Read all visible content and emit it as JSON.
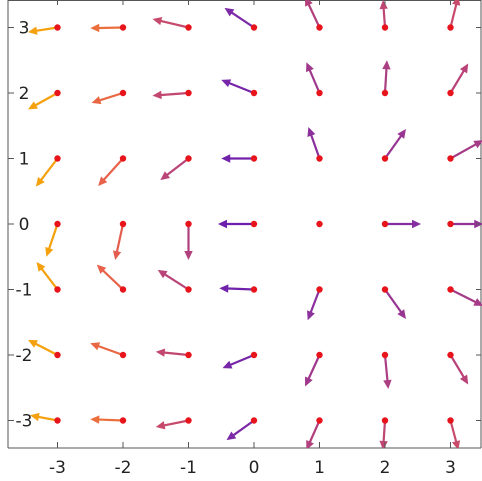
{
  "chart_data": {
    "type": "vector-field",
    "title": "",
    "xlabel": "",
    "ylabel": "",
    "xlim": [
      -3.45,
      3.45
    ],
    "ylim": [
      -3.45,
      3.45
    ],
    "grid": false,
    "legend": "none",
    "x_ticks": [
      "-3",
      "-2",
      "-1",
      "0",
      "1",
      "2",
      "3"
    ],
    "y_ticks": [
      "3",
      "2",
      "1",
      "0",
      "-1",
      "-2",
      "-3"
    ],
    "x_tick_values": [
      -3,
      -2,
      -1,
      0,
      1,
      2,
      3
    ],
    "y_tick_values": [
      3,
      2,
      1,
      0,
      -1,
      -2,
      -3
    ],
    "sample_point_color": "#e8141b",
    "arrow_color_scale": [
      "#4b10b6",
      "#7e2aa6",
      "#c4486f",
      "#e8614a",
      "#f5a00d"
    ],
    "vectors": [
      {
        "x": -3,
        "y": 3,
        "dx": -0.45,
        "dy": -0.07
      },
      {
        "x": -2,
        "y": 3,
        "dx": -0.5,
        "dy": -0.01
      },
      {
        "x": -1,
        "y": 3,
        "dx": -0.55,
        "dy": 0.13
      },
      {
        "x": 0,
        "y": 3,
        "dx": -0.45,
        "dy": 0.3
      },
      {
        "x": 1,
        "y": 3,
        "dx": -0.22,
        "dy": 0.47
      },
      {
        "x": 2,
        "y": 3,
        "dx": -0.03,
        "dy": 0.42
      },
      {
        "x": 3,
        "y": 3,
        "dx": 0.12,
        "dy": 0.48
      },
      {
        "x": -3,
        "y": 2,
        "dx": -0.45,
        "dy": -0.25
      },
      {
        "x": -2,
        "y": 2,
        "dx": -0.48,
        "dy": -0.15
      },
      {
        "x": -1,
        "y": 2,
        "dx": -0.55,
        "dy": -0.04
      },
      {
        "x": 0,
        "y": 2,
        "dx": -0.5,
        "dy": 0.2
      },
      {
        "x": 1,
        "y": 2,
        "dx": -0.2,
        "dy": 0.47
      },
      {
        "x": 2,
        "y": 2,
        "dx": 0.03,
        "dy": 0.5
      },
      {
        "x": 3,
        "y": 2,
        "dx": 0.27,
        "dy": 0.45
      },
      {
        "x": -3,
        "y": 1,
        "dx": -0.33,
        "dy": -0.43
      },
      {
        "x": -2,
        "y": 1,
        "dx": -0.38,
        "dy": -0.42
      },
      {
        "x": -1,
        "y": 1,
        "dx": -0.43,
        "dy": -0.33
      },
      {
        "x": 0,
        "y": 1,
        "dx": -0.5,
        "dy": 0.0
      },
      {
        "x": 1,
        "y": 1,
        "dx": -0.17,
        "dy": 0.48
      },
      {
        "x": 2,
        "y": 1,
        "dx": 0.32,
        "dy": 0.45
      },
      {
        "x": 3,
        "y": 1,
        "dx": 0.5,
        "dy": 0.28
      },
      {
        "x": -3,
        "y": 0,
        "dx": -0.17,
        "dy": -0.5
      },
      {
        "x": -2,
        "y": 0,
        "dx": -0.12,
        "dy": -0.55
      },
      {
        "x": -1,
        "y": 0,
        "dx": 0.0,
        "dy": -0.55
      },
      {
        "x": 0,
        "y": 0,
        "dx": -0.55,
        "dy": 0.0
      },
      {
        "x": 1,
        "y": 0,
        "dx": 0.0,
        "dy": 0.0
      },
      {
        "x": 2,
        "y": 0,
        "dx": 0.55,
        "dy": 0.0
      },
      {
        "x": 3,
        "y": 0,
        "dx": 0.5,
        "dy": 0.0
      },
      {
        "x": -3,
        "y": -1,
        "dx": -0.32,
        "dy": 0.42
      },
      {
        "x": -2,
        "y": -1,
        "dx": -0.4,
        "dy": 0.38
      },
      {
        "x": -1,
        "y": -1,
        "dx": -0.47,
        "dy": 0.3
      },
      {
        "x": 0,
        "y": -1,
        "dx": -0.53,
        "dy": 0.02
      },
      {
        "x": 1,
        "y": -1,
        "dx": -0.18,
        "dy": -0.47
      },
      {
        "x": 2,
        "y": -1,
        "dx": 0.32,
        "dy": -0.45
      },
      {
        "x": 3,
        "y": -1,
        "dx": 0.5,
        "dy": -0.25
      },
      {
        "x": -3,
        "y": -2,
        "dx": -0.45,
        "dy": 0.23
      },
      {
        "x": -2,
        "y": -2,
        "dx": -0.5,
        "dy": 0.18
      },
      {
        "x": -1,
        "y": -2,
        "dx": -0.5,
        "dy": 0.05
      },
      {
        "x": 0,
        "y": -2,
        "dx": -0.48,
        "dy": -0.2
      },
      {
        "x": 1,
        "y": -2,
        "dx": -0.22,
        "dy": -0.48
      },
      {
        "x": 2,
        "y": -2,
        "dx": 0.05,
        "dy": -0.52
      },
      {
        "x": 3,
        "y": -2,
        "dx": 0.27,
        "dy": -0.45
      },
      {
        "x": -3,
        "y": -3,
        "dx": -0.42,
        "dy": 0.08
      },
      {
        "x": -2,
        "y": -3,
        "dx": -0.5,
        "dy": 0.02
      },
      {
        "x": -1,
        "y": -3,
        "dx": -0.5,
        "dy": -0.1
      },
      {
        "x": 0,
        "y": -3,
        "dx": -0.42,
        "dy": -0.3
      },
      {
        "x": 1,
        "y": -3,
        "dx": -0.2,
        "dy": -0.45
      },
      {
        "x": 2,
        "y": -3,
        "dx": -0.03,
        "dy": -0.45
      },
      {
        "x": 3,
        "y": -3,
        "dx": 0.12,
        "dy": -0.45
      }
    ]
  }
}
